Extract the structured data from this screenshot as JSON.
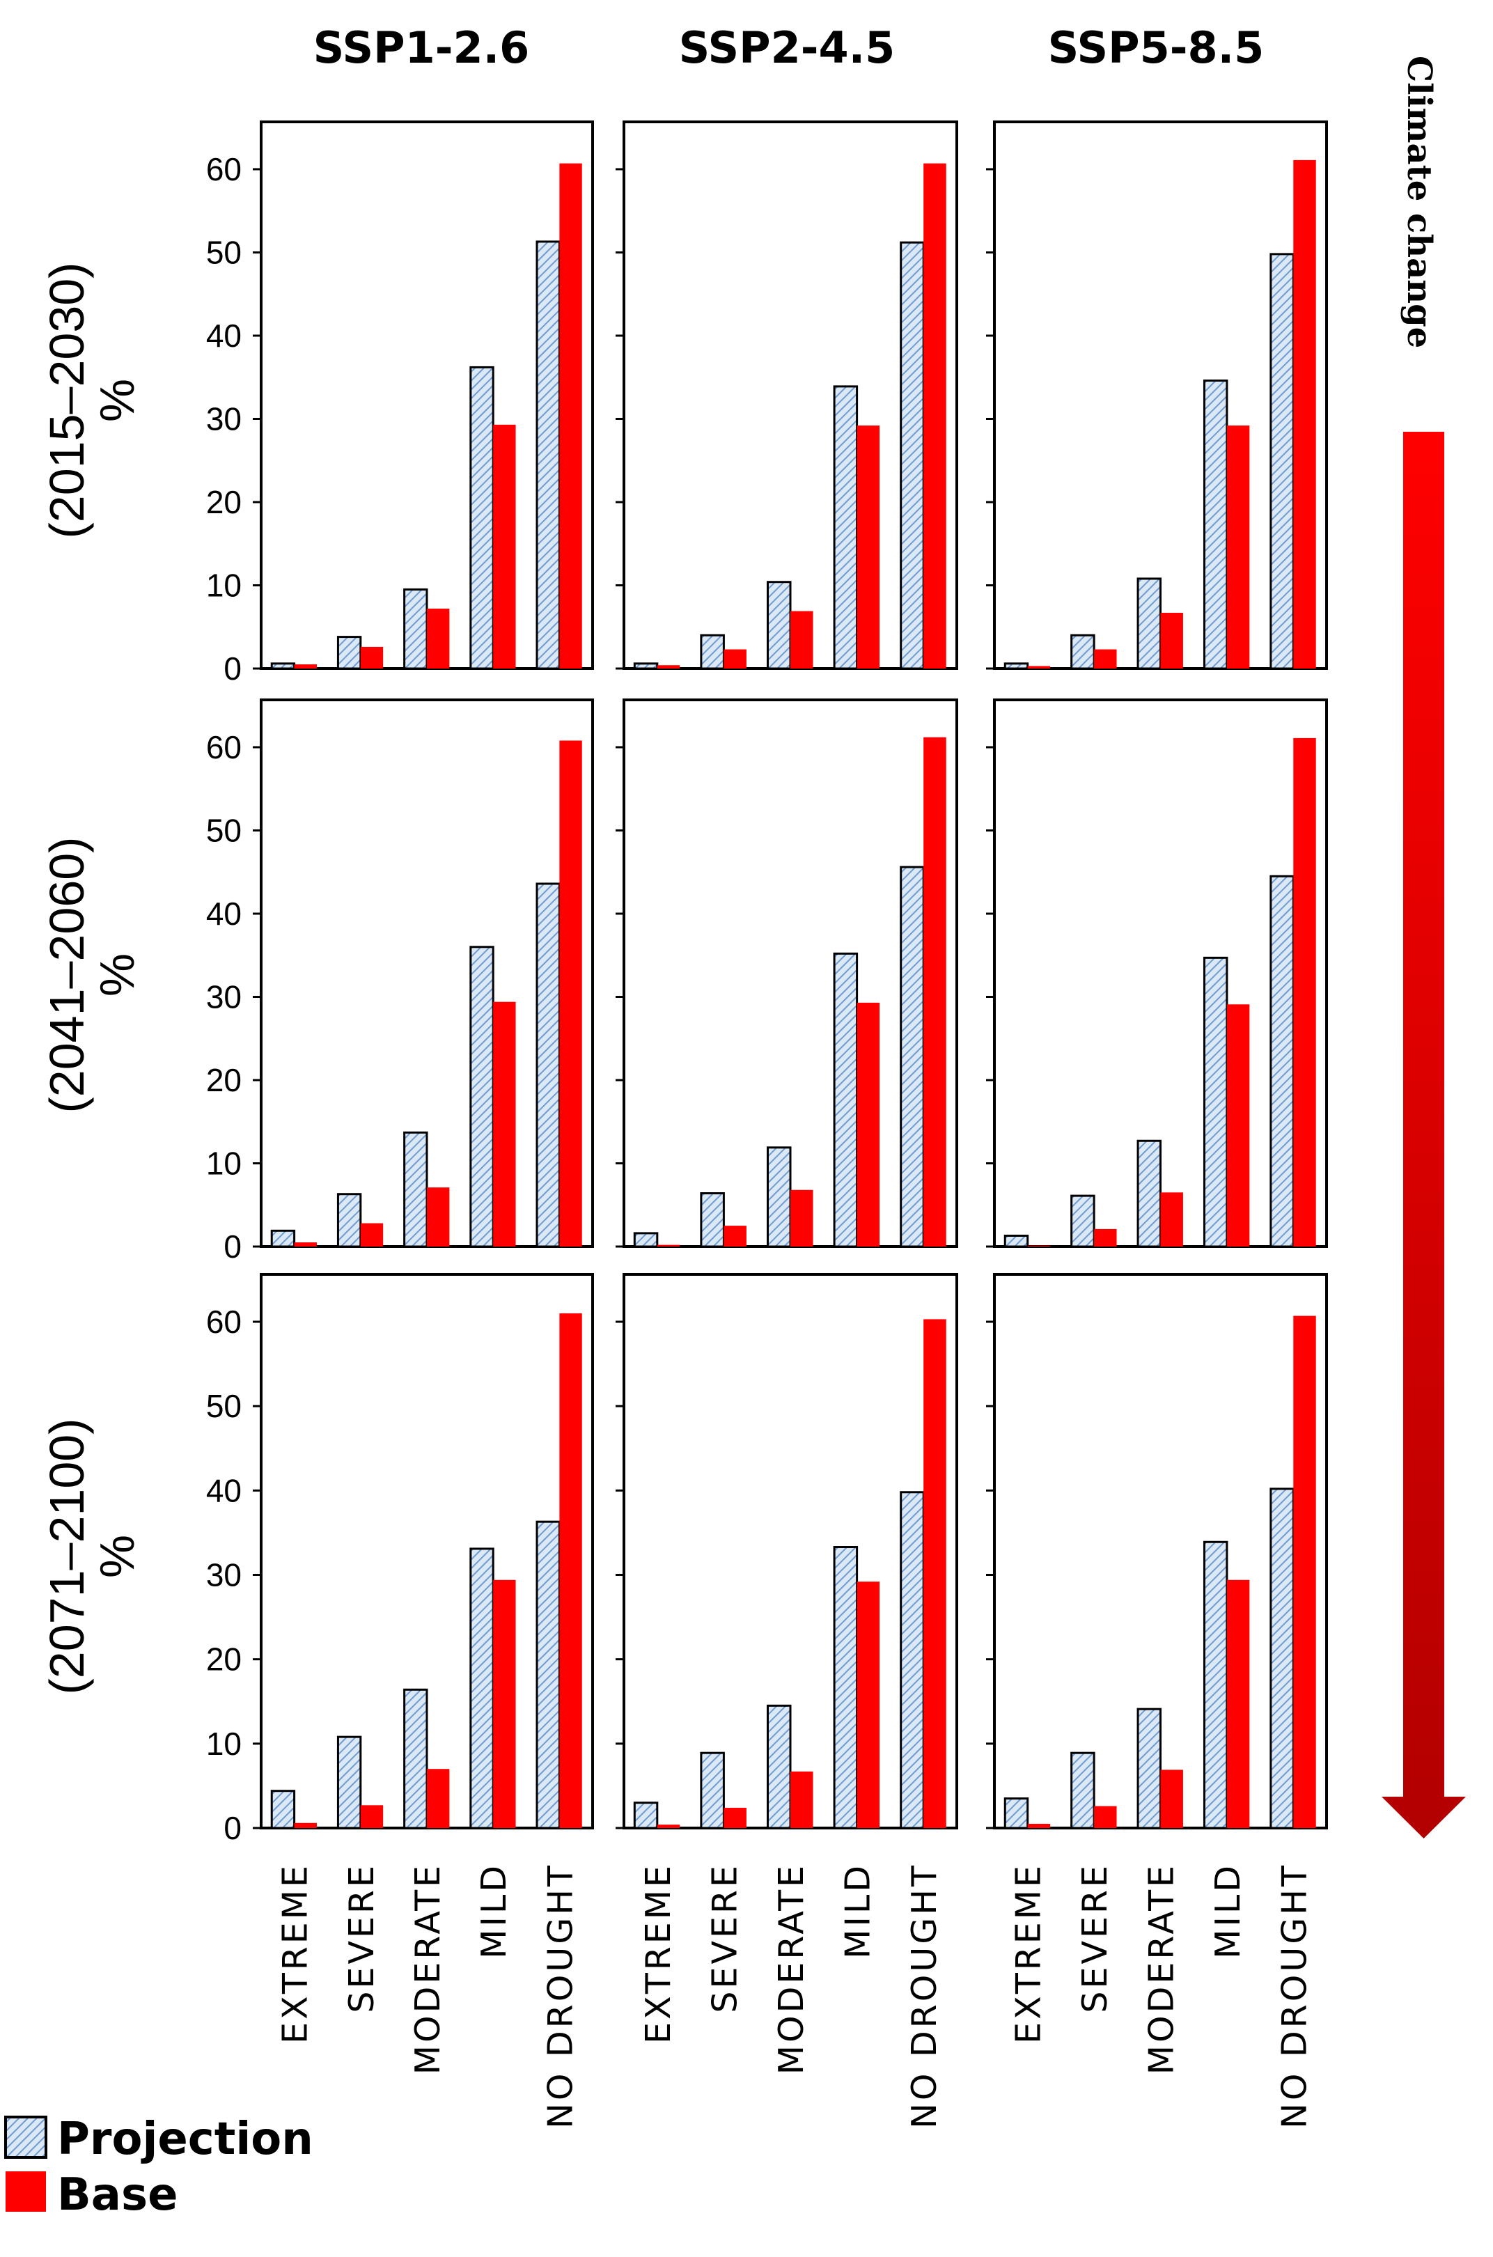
{
  "figure": {
    "column_titles": [
      "SSP1-2.6",
      "SSP2-4.5",
      "SSP5-8.5"
    ],
    "row_labels": [
      "(2015–2030)",
      "(2041–2060)",
      "(2071–2100)"
    ],
    "row_unit": "%",
    "climate_change_label": "Climate change",
    "legend": [
      {
        "label": "Projection",
        "style": "hatched",
        "color": "#a9c6ea"
      },
      {
        "label": "Base",
        "style": "solid",
        "color": "#ff0000"
      }
    ],
    "colors": {
      "projection_fill": "#dbe8f6",
      "projection_hatch": "#6f9bd1",
      "base": "#ff0000",
      "arrow_top": "#ff0000",
      "arrow_bottom": "#b20000"
    }
  },
  "chart_data": [
    {
      "type": "bar",
      "scenario": "SSP1-2.6",
      "period": "(2015–2030)",
      "categories": [
        "EXTREME",
        "SEVERE",
        "MODERATE",
        "MILD",
        "NO DROUGHT"
      ],
      "ylim": [
        0,
        60
      ],
      "yticks": [
        0,
        10,
        20,
        30,
        40,
        50,
        60
      ],
      "ylabel": "%",
      "series": [
        {
          "name": "Projection",
          "values": [
            0.6,
            3.8,
            9.5,
            36.2,
            51.3
          ]
        },
        {
          "name": "Base",
          "values": [
            0.5,
            2.6,
            7.2,
            29.3,
            60.7
          ]
        }
      ]
    },
    {
      "type": "bar",
      "scenario": "SSP2-4.5",
      "period": "(2015–2030)",
      "categories": [
        "EXTREME",
        "SEVERE",
        "MODERATE",
        "MILD",
        "NO DROUGHT"
      ],
      "ylim": [
        0,
        60
      ],
      "yticks": [
        0,
        10,
        20,
        30,
        40,
        50,
        60
      ],
      "ylabel": "",
      "series": [
        {
          "name": "Projection",
          "values": [
            0.6,
            4.0,
            10.4,
            33.9,
            51.2
          ]
        },
        {
          "name": "Base",
          "values": [
            0.4,
            2.3,
            6.9,
            29.2,
            60.7
          ]
        }
      ]
    },
    {
      "type": "bar",
      "scenario": "SSP5-8.5",
      "period": "(2015–2030)",
      "categories": [
        "EXTREME",
        "SEVERE",
        "MODERATE",
        "MILD",
        "NO DROUGHT"
      ],
      "ylim": [
        0,
        60
      ],
      "yticks": [
        0,
        10,
        20,
        30,
        40,
        50,
        60
      ],
      "ylabel": "",
      "series": [
        {
          "name": "Projection",
          "values": [
            0.6,
            4.0,
            10.8,
            34.6,
            49.8
          ]
        },
        {
          "name": "Base",
          "values": [
            0.3,
            2.3,
            6.7,
            29.2,
            61.1
          ]
        }
      ]
    },
    {
      "type": "bar",
      "scenario": "SSP1-2.6",
      "period": "(2041–2060)",
      "categories": [
        "EXTREME",
        "SEVERE",
        "MODERATE",
        "MILD",
        "NO DROUGHT"
      ],
      "ylim": [
        0,
        60
      ],
      "yticks": [
        0,
        10,
        20,
        30,
        40,
        50,
        60
      ],
      "ylabel": "%",
      "series": [
        {
          "name": "Projection",
          "values": [
            1.9,
            6.3,
            13.7,
            36.0,
            43.6
          ]
        },
        {
          "name": "Base",
          "values": [
            0.5,
            2.8,
            7.1,
            29.4,
            60.8
          ]
        }
      ]
    },
    {
      "type": "bar",
      "scenario": "SSP2-4.5",
      "period": "(2041–2060)",
      "categories": [
        "EXTREME",
        "SEVERE",
        "MODERATE",
        "MILD",
        "NO DROUGHT"
      ],
      "ylim": [
        0,
        60
      ],
      "yticks": [
        0,
        10,
        20,
        30,
        40,
        50,
        60
      ],
      "ylabel": "",
      "series": [
        {
          "name": "Projection",
          "values": [
            1.6,
            6.4,
            11.9,
            35.2,
            45.6
          ]
        },
        {
          "name": "Base",
          "values": [
            0.2,
            2.5,
            6.8,
            29.3,
            61.2
          ]
        }
      ]
    },
    {
      "type": "bar",
      "scenario": "SSP5-8.5",
      "period": "(2041–2060)",
      "categories": [
        "EXTREME",
        "SEVERE",
        "MODERATE",
        "MILD",
        "NO DROUGHT"
      ],
      "ylim": [
        0,
        60
      ],
      "yticks": [
        0,
        10,
        20,
        30,
        40,
        50,
        60
      ],
      "ylabel": "",
      "series": [
        {
          "name": "Projection",
          "values": [
            1.3,
            6.1,
            12.7,
            34.7,
            44.5
          ]
        },
        {
          "name": "Base",
          "values": [
            0.1,
            2.1,
            6.5,
            29.1,
            61.1
          ]
        }
      ]
    },
    {
      "type": "bar",
      "scenario": "SSP1-2.6",
      "period": "(2071–2100)",
      "categories": [
        "EXTREME",
        "SEVERE",
        "MODERATE",
        "MILD",
        "NO DROUGHT"
      ],
      "ylim": [
        0,
        60
      ],
      "yticks": [
        0,
        10,
        20,
        30,
        40,
        50,
        60
      ],
      "ylabel": "%",
      "series": [
        {
          "name": "Projection",
          "values": [
            4.4,
            10.8,
            16.4,
            33.1,
            36.3
          ]
        },
        {
          "name": "Base",
          "values": [
            0.6,
            2.7,
            7.0,
            29.4,
            61.0
          ]
        }
      ]
    },
    {
      "type": "bar",
      "scenario": "SSP2-4.5",
      "period": "(2071–2100)",
      "categories": [
        "EXTREME",
        "SEVERE",
        "MODERATE",
        "MILD",
        "NO DROUGHT"
      ],
      "ylim": [
        0,
        60
      ],
      "yticks": [
        0,
        10,
        20,
        30,
        40,
        50,
        60
      ],
      "ylabel": "",
      "series": [
        {
          "name": "Projection",
          "values": [
            3.0,
            8.9,
            14.5,
            33.3,
            39.8
          ]
        },
        {
          "name": "Base",
          "values": [
            0.4,
            2.4,
            6.7,
            29.2,
            60.3
          ]
        }
      ]
    },
    {
      "type": "bar",
      "scenario": "SSP5-8.5",
      "period": "(2071–2100)",
      "categories": [
        "EXTREME",
        "SEVERE",
        "MODERATE",
        "MILD",
        "NO DROUGHT"
      ],
      "ylim": [
        0,
        60
      ],
      "yticks": [
        0,
        10,
        20,
        30,
        40,
        50,
        60
      ],
      "ylabel": "",
      "series": [
        {
          "name": "Projection",
          "values": [
            3.5,
            8.9,
            14.1,
            33.9,
            40.2
          ]
        },
        {
          "name": "Base",
          "values": [
            0.5,
            2.6,
            6.9,
            29.4,
            60.7
          ]
        }
      ]
    }
  ]
}
